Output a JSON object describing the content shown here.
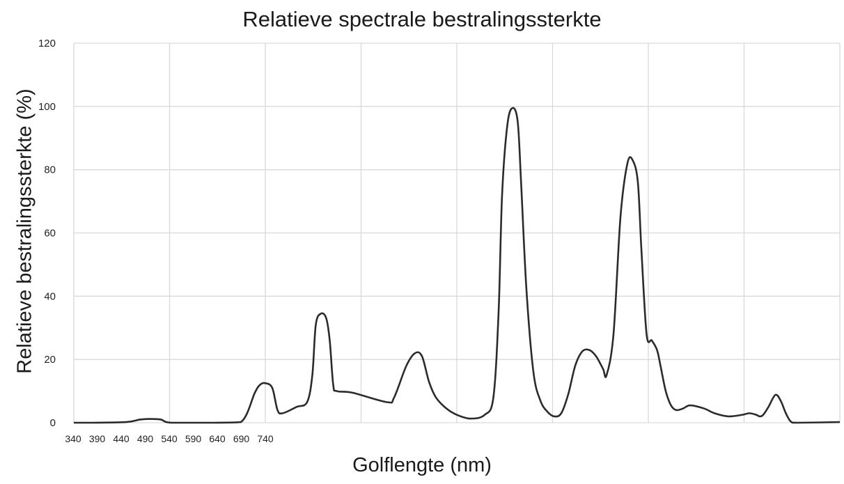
{
  "chart_data": {
    "type": "line",
    "title": "Relatieve spectrale bestralingssterkte",
    "xlabel": "Golflengte (nm)",
    "ylabel": "Relatieve bestralingssterkte (%)",
    "x_tick_labels": [
      "340",
      "390",
      "440",
      "490",
      "540",
      "590",
      "640",
      "690",
      "740"
    ],
    "y_ticks": [
      0,
      20,
      40,
      60,
      80,
      100,
      120
    ],
    "ylim": [
      0,
      120
    ],
    "grid": true,
    "color": "#2b2b2b",
    "series": [
      {
        "values": [
          [
            0,
            0
          ],
          [
            5,
            0
          ],
          [
            15,
            0.2
          ],
          [
            19,
            1
          ],
          [
            22,
            1.2
          ],
          [
            25,
            1
          ],
          [
            28,
            0
          ],
          [
            40,
            0
          ],
          [
            48,
            0.2
          ],
          [
            52,
            9.5
          ],
          [
            53.5,
            12
          ],
          [
            55,
            12.5
          ],
          [
            57,
            11
          ],
          [
            58.5,
            4
          ],
          [
            60,
            3
          ],
          [
            64,
            5
          ],
          [
            67,
            6.5
          ],
          [
            68.5,
            15
          ],
          [
            69.5,
            31
          ],
          [
            71,
            34.5
          ],
          [
            72.5,
            33
          ],
          [
            73.5,
            26
          ],
          [
            74.5,
            12
          ],
          [
            75.5,
            10
          ],
          [
            80,
            9.5
          ],
          [
            90,
            6.5
          ],
          [
            92,
            8
          ],
          [
            95.5,
            18
          ],
          [
            98,
            22
          ],
          [
            100,
            21
          ],
          [
            102,
            13
          ],
          [
            104,
            8
          ],
          [
            107,
            4.5
          ],
          [
            110,
            2.5
          ],
          [
            114,
            1.3
          ],
          [
            118,
            2.5
          ],
          [
            120.5,
            8
          ],
          [
            122,
            35
          ],
          [
            123,
            72
          ],
          [
            124.5,
            94
          ],
          [
            126,
            99.5
          ],
          [
            127.5,
            95
          ],
          [
            128.5,
            75
          ],
          [
            130,
            42
          ],
          [
            132,
            16
          ],
          [
            134,
            7
          ],
          [
            136,
            3.5
          ],
          [
            138,
            2
          ],
          [
            140,
            3
          ],
          [
            142,
            9
          ],
          [
            144,
            18
          ],
          [
            146,
            22.5
          ],
          [
            148,
            23
          ],
          [
            150,
            21
          ],
          [
            152,
            17
          ],
          [
            153,
            15
          ],
          [
            155,
            28
          ],
          [
            157,
            65
          ],
          [
            159,
            82
          ],
          [
            160.5,
            83
          ],
          [
            162,
            76
          ],
          [
            163,
            55
          ],
          [
            164.5,
            28
          ],
          [
            166,
            26
          ],
          [
            167.5,
            23
          ],
          [
            168.5,
            18
          ],
          [
            170,
            10
          ],
          [
            171.5,
            5.5
          ],
          [
            173,
            4
          ],
          [
            175,
            4.5
          ],
          [
            177,
            5.5
          ],
          [
            181,
            4.5
          ],
          [
            184,
            3
          ],
          [
            188,
            2
          ],
          [
            192,
            2.5
          ],
          [
            194,
            3
          ],
          [
            196,
            2.5
          ],
          [
            197,
            2
          ],
          [
            198,
            2.5
          ],
          [
            199.5,
            5
          ],
          [
            201.5,
            8.8
          ],
          [
            203,
            7
          ],
          [
            204.5,
            3
          ],
          [
            206,
            0.3
          ],
          [
            208,
            0
          ],
          [
            220,
            0.2
          ]
        ]
      }
    ]
  }
}
